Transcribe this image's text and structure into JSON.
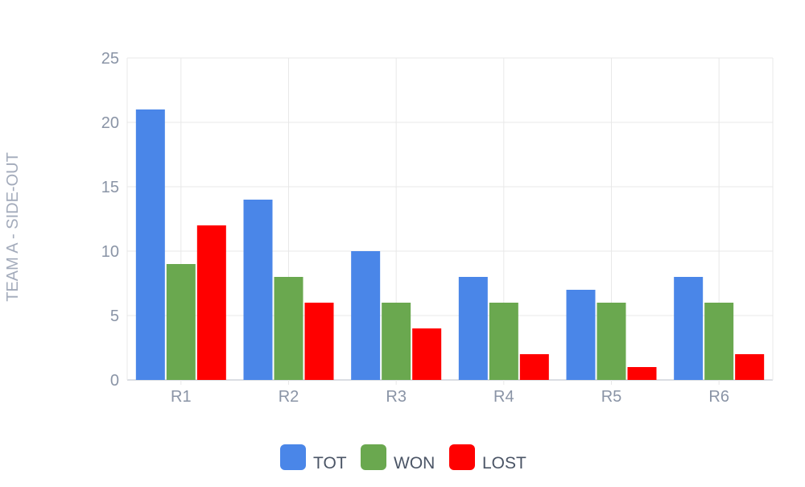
{
  "chart_data": {
    "type": "bar",
    "title": "",
    "xlabel": "",
    "ylabel": "TEAM A - SIDE-OUT",
    "categories": [
      "R1",
      "R2",
      "R3",
      "R4",
      "R5",
      "R6"
    ],
    "series": [
      {
        "name": "TOT",
        "color": "#4a86e8",
        "values": [
          21,
          14,
          10,
          8,
          7,
          8
        ]
      },
      {
        "name": "WON",
        "color": "#6aa84f",
        "values": [
          9,
          8,
          6,
          6,
          6,
          6
        ]
      },
      {
        "name": "LOST",
        "color": "#ff0000",
        "values": [
          12,
          6,
          4,
          2,
          1,
          2
        ]
      }
    ],
    "ylim": [
      0,
      25
    ],
    "yticks": [
      "0",
      "5",
      "10",
      "15",
      "20",
      "25"
    ],
    "grid": true,
    "legend_position": "bottom-center"
  }
}
